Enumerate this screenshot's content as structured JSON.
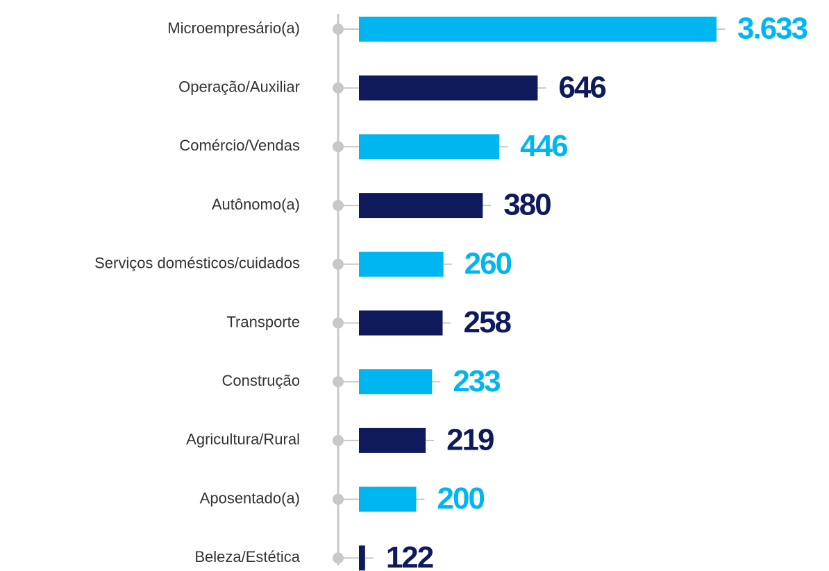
{
  "chart_data": {
    "type": "bar",
    "orientation": "horizontal",
    "log_scale": true,
    "categories": [
      "Microempresário(a)",
      "Operação/Auxiliar",
      "Comércio/Vendas",
      "Autônomo(a)",
      "Serviços domésticos/cuidados",
      "Transporte",
      "Construção",
      "Agricultura/Rural",
      "Aposentado(a)",
      "Beleza/Estética"
    ],
    "values": [
      3633,
      646,
      446,
      380,
      260,
      258,
      233,
      219,
      200,
      122
    ],
    "value_labels": [
      "3.633",
      "646",
      "446",
      "380",
      "260",
      "258",
      "233",
      "219",
      "200",
      "122"
    ],
    "colors": [
      "#00b6f1",
      "#0e1a5c",
      "#00b6f1",
      "#0e1a5c",
      "#00b6f1",
      "#0e1a5c",
      "#00b6f1",
      "#0e1a5c",
      "#00b6f1",
      "#0e1a5c"
    ],
    "xlim": [
      115,
      3633
    ]
  }
}
